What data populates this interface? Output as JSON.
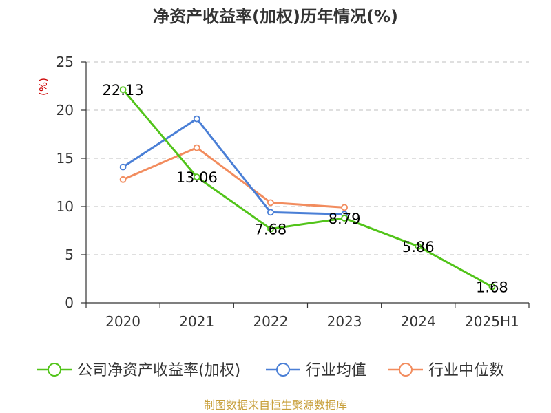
{
  "chart_data": {
    "type": "line",
    "title": "净资产收益率(加权)历年情况(%)",
    "y_unit": "(%)",
    "categories": [
      "2020",
      "2021",
      "2022",
      "2023",
      "2024",
      "2025H1"
    ],
    "ylim": [
      0,
      25
    ],
    "yticks": [
      0,
      5,
      10,
      15,
      20,
      25
    ],
    "grid": true,
    "legend_position": "bottom",
    "series": [
      {
        "name": "公司净资产收益率(加权)",
        "color": "#52c41a",
        "values": [
          22.13,
          13.06,
          7.68,
          8.79,
          5.86,
          1.68
        ],
        "labels": [
          "22.13",
          "13.06",
          "7.68",
          "8.79",
          "5.86",
          "1.68"
        ]
      },
      {
        "name": "行业均值",
        "color": "#4a7fd6",
        "values": [
          14.1,
          19.1,
          9.4,
          9.2,
          null,
          null
        ]
      },
      {
        "name": "行业中位数",
        "color": "#f28c5e",
        "values": [
          12.8,
          16.1,
          10.4,
          9.9,
          null,
          null
        ]
      }
    ]
  },
  "footer": {
    "source": "制图数据来自恒生聚源数据库",
    "color": "#c8a03c"
  },
  "colors": {
    "axis": "#333333",
    "grid": "#cccccc",
    "unit": "#cc0000"
  }
}
